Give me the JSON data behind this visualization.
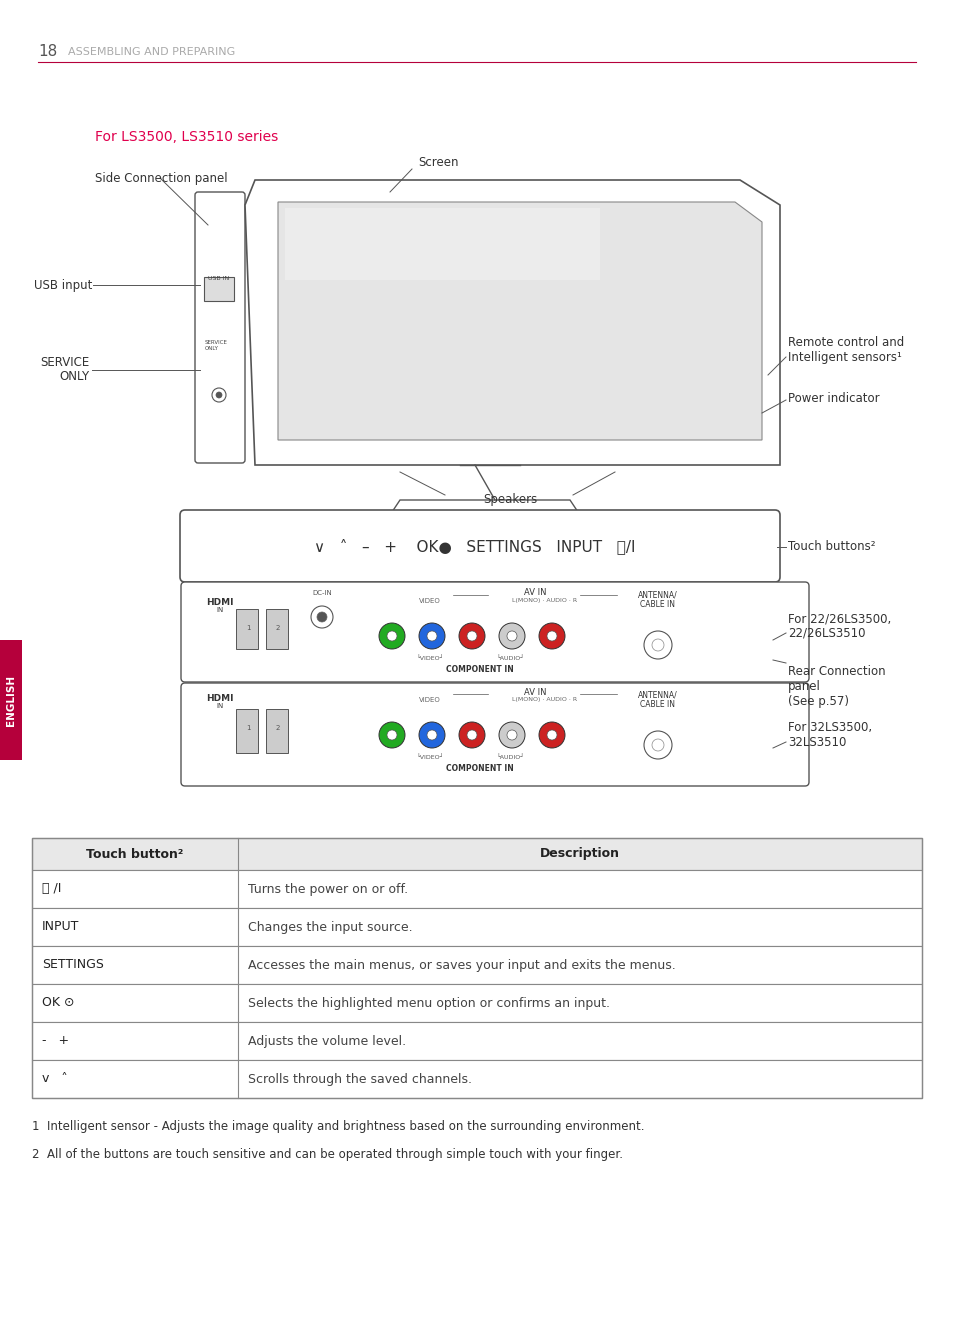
{
  "page_num": "18",
  "header_text": "ASSEMBLING AND PREPARING",
  "header_line_color": "#b5003b",
  "series_label": "For LS3500, LS3510 series",
  "series_label_color": "#e0004d",
  "side_panel_label": "Side Connection panel",
  "screen_label": "Screen",
  "usb_label": "USB input",
  "service_label_1": "SERVICE",
  "service_label_2": "ONLY",
  "remote_label": "Remote control and\nIntelligent sensors¹",
  "power_label": "Power indicator",
  "speakers_label": "Speakers",
  "touch_buttons_label": "Touch buttons²",
  "touch_bar_text": "∨   ˄   –   +    OK●   SETTINGS   INPUT   ⏻/I",
  "conn1_label": "For 22/26LS3500,\n22/26LS3510",
  "conn2_label": "For 32LS3500,\n32LS3510",
  "rear_conn_label": "Rear Connection\npanel\n(See p.57)",
  "table_header_col1": "Touch button²",
  "table_header_col2": "Description",
  "table_rows": [
    [
      "⏻ /I",
      "Turns the power on or off."
    ],
    [
      "INPUT",
      "Changes the input source."
    ],
    [
      "SETTINGS",
      "Accesses the main menus, or saves your input and exits the menus."
    ],
    [
      "OK ⊙",
      "Selects the highlighted menu option or confirms an input."
    ],
    [
      "-   +",
      "Adjusts the volume level."
    ],
    [
      "v   ˄",
      "Scrolls through the saved channels."
    ]
  ],
  "footnote1": "1  Intelligent sensor - Adjusts the image quality and brightness based on the surrounding environment.",
  "footnote2": "2  All of the buttons are touch sensitive and can be operated through simple touch with your finger.",
  "english_tab_color": "#b5003b",
  "english_tab_text": "ENGLISH",
  "bg_color": "#ffffff",
  "text_color": "#333333",
  "line_color": "#888888",
  "table_border_color": "#888888",
  "table_header_bg": "#e8e8e8"
}
